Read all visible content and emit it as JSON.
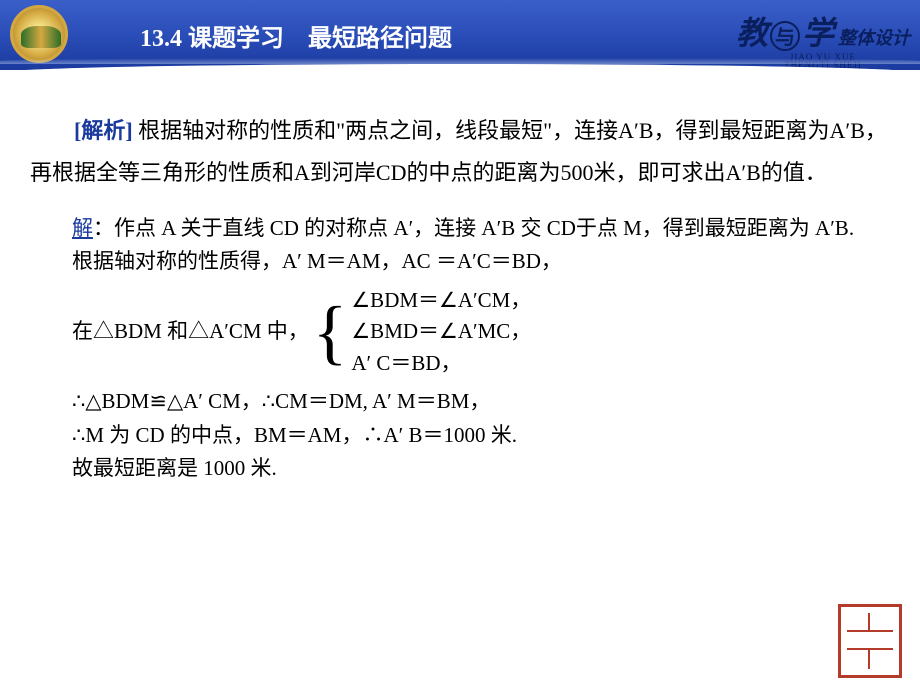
{
  "header": {
    "title": "13.4  课题学习　最短路径问题",
    "brand_char1": "教",
    "brand_amp": "与",
    "brand_char2": "学",
    "brand_sub": "整体设计",
    "brand_pinyin1": "JIAO YU XUE",
    "brand_pinyin2": "ZHENGTI SHEJI",
    "colors": {
      "bg_gradient_top": "#3b5fc9",
      "bg_gradient_bottom": "#1a3a9e",
      "title_color": "#ffffff",
      "brand_color": "#0a1f5e"
    }
  },
  "analysis": {
    "label": "[解析]",
    "text": " 根据轴对称的性质和\"两点之间，线段最短\"，连接A′B，得到最短距离为A′B，再根据全等三角形的性质和A到河岸CD的中点的距离为500米，即可求出A′B的值．",
    "label_color": "#1a3a9e"
  },
  "solution": {
    "label": "解",
    "line1": "：作点 A 关于直线 CD 的对称点 A′，连接 A′B 交 CD于点 M，得到最短距离为 A′B.",
    "line2": "根据轴对称的性质得，A′ M＝AM，AC ＝A′C＝BD，",
    "brace_intro": "在△BDM 和△A′CM 中，",
    "case1": "∠BDM＝∠A′CM，",
    "case2": "∠BMD＝∠A′MC，",
    "case3": "A′ C＝BD，",
    "line4": "∴△BDM≌△A′ CM，∴CM＝DM, A′ M＝BM，",
    "line5": "∴M 为 CD 的中点，BM＝AM，∴A′ B＝1000 米.",
    "line6": "故最短距离是 1000 米.",
    "label_color": "#1a3a9e"
  },
  "stamp": {
    "border_color": "#b43a2a"
  },
  "typography": {
    "body_font": "SimSun, Times New Roman, serif",
    "analysis_fontsize": 22,
    "solution_fontsize": 21,
    "header_title_fontsize": 24
  }
}
